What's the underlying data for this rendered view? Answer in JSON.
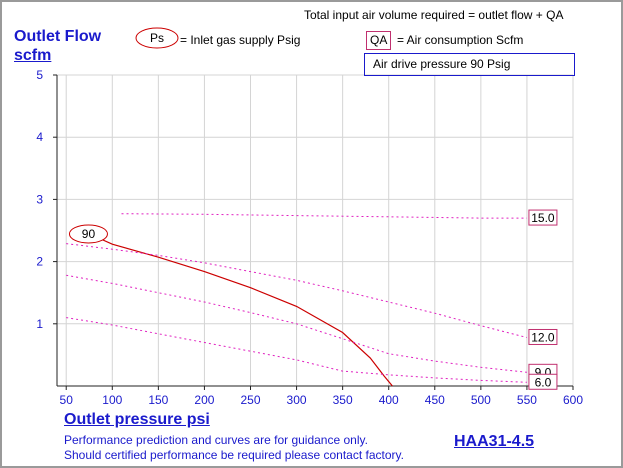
{
  "header": {
    "total_input_note": "Total input air volume required = outlet flow + QA",
    "ps_symbol": "Ps",
    "ps_legend": "= Inlet gas supply  Psig",
    "qa_symbol": "QA",
    "qa_legend": "= Air consumption  Scfm",
    "drive_pressure": "Air drive pressure  90 Psig"
  },
  "y_title_line1": "Outlet Flow",
  "y_title_line2": "scfm",
  "x_title": "Outlet pressure   psi",
  "model": "HAA31-4.5",
  "disclaimer_line1": "Performance prediction and curves are for guidance only.",
  "disclaimer_line2": "Should certified performance be required please contact factory.",
  "colors": {
    "axis_text": "#1a1acc",
    "flow_curve": "#cc0000",
    "air_consumption": "#e020c0",
    "label_box": "#c0306f"
  },
  "chart_data": {
    "type": "line",
    "xlabel": "Outlet pressure   psi",
    "ylabel": "Outlet Flow scfm",
    "xlim": [
      40,
      600
    ],
    "ylim": [
      0,
      5
    ],
    "x_ticks": [
      50,
      100,
      150,
      200,
      250,
      300,
      350,
      400,
      450,
      500,
      550,
      600
    ],
    "y_ticks": [
      1,
      2,
      3,
      4,
      5
    ],
    "grid": true,
    "series": [
      {
        "name": "90",
        "kind": "outlet_flow",
        "x": [
          85,
          100,
          150,
          200,
          250,
          300,
          350,
          380,
          395,
          404
        ],
        "y": [
          2.38,
          2.28,
          2.07,
          1.84,
          1.58,
          1.28,
          0.86,
          0.45,
          0.16,
          0.0
        ]
      },
      {
        "name": "15.0",
        "kind": "air_consumption",
        "x": [
          110,
          200,
          300,
          400,
          500,
          550
        ],
        "y": [
          2.77,
          2.76,
          2.74,
          2.72,
          2.7,
          2.7
        ]
      },
      {
        "name": "12.0",
        "kind": "air_consumption",
        "x": [
          50,
          100,
          150,
          200,
          250,
          300,
          350,
          400,
          450,
          500,
          550
        ],
        "y": [
          2.29,
          2.2,
          2.1,
          1.98,
          1.84,
          1.7,
          1.53,
          1.35,
          1.17,
          0.97,
          0.78
        ]
      },
      {
        "name": "9.0",
        "kind": "air_consumption",
        "x": [
          50,
          100,
          150,
          200,
          250,
          300,
          350,
          400,
          450,
          500,
          550
        ],
        "y": [
          1.78,
          1.65,
          1.5,
          1.35,
          1.18,
          1.0,
          0.76,
          0.52,
          0.4,
          0.3,
          0.22
        ]
      },
      {
        "name": "6.0",
        "kind": "air_consumption",
        "x": [
          50,
          100,
          150,
          200,
          250,
          300,
          350,
          400,
          450,
          500,
          550
        ],
        "y": [
          1.1,
          0.98,
          0.84,
          0.7,
          0.56,
          0.42,
          0.24,
          0.18,
          0.13,
          0.09,
          0.06
        ]
      }
    ]
  }
}
